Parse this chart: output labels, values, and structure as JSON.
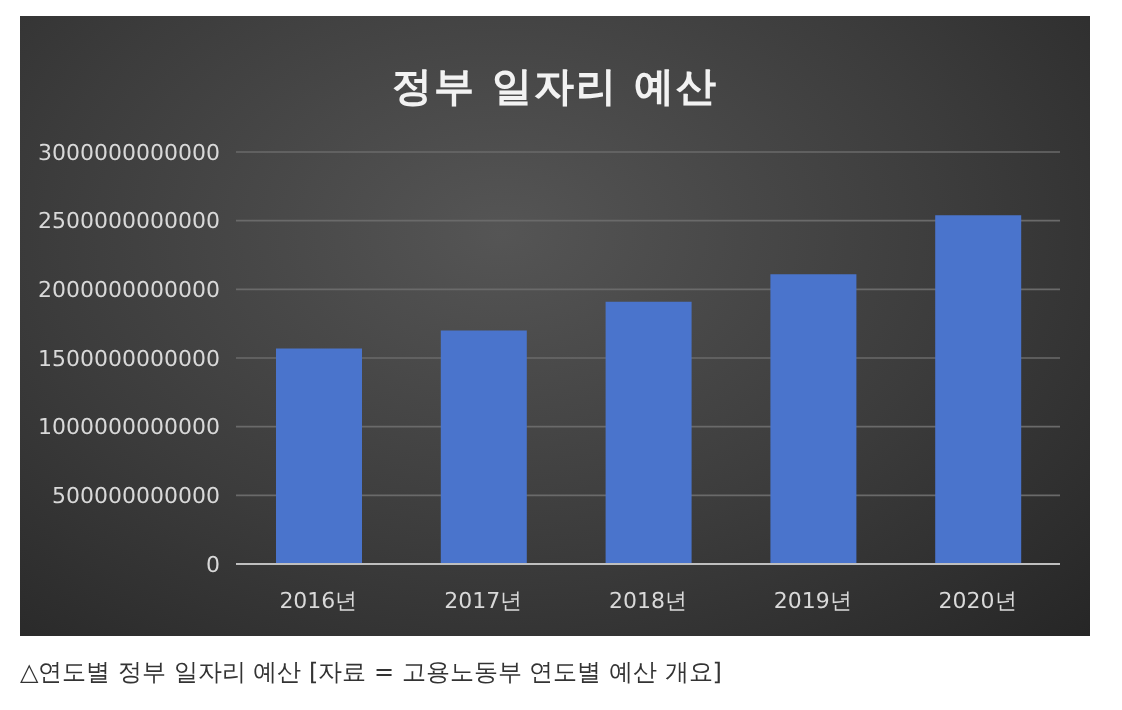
{
  "chart_data": {
    "type": "bar",
    "title": "정부 일자리 예산",
    "categories": [
      "2016년",
      "2017년",
      "2018년",
      "2019년",
      "2020년"
    ],
    "values": [
      1570000000000,
      1700000000000,
      1910000000000,
      2110000000000,
      2540000000000
    ],
    "color": "#4a74cc",
    "ylim": [
      0,
      3000000000000
    ],
    "yticks": [
      0,
      500000000000,
      1000000000000,
      1500000000000,
      2000000000000,
      2500000000000,
      3000000000000
    ],
    "grid": "y",
    "legend": false,
    "annotations": [
      "△연도별 정부 일자리 예산 [자료 = 고용노동부 연도별 예산 개요]"
    ]
  }
}
